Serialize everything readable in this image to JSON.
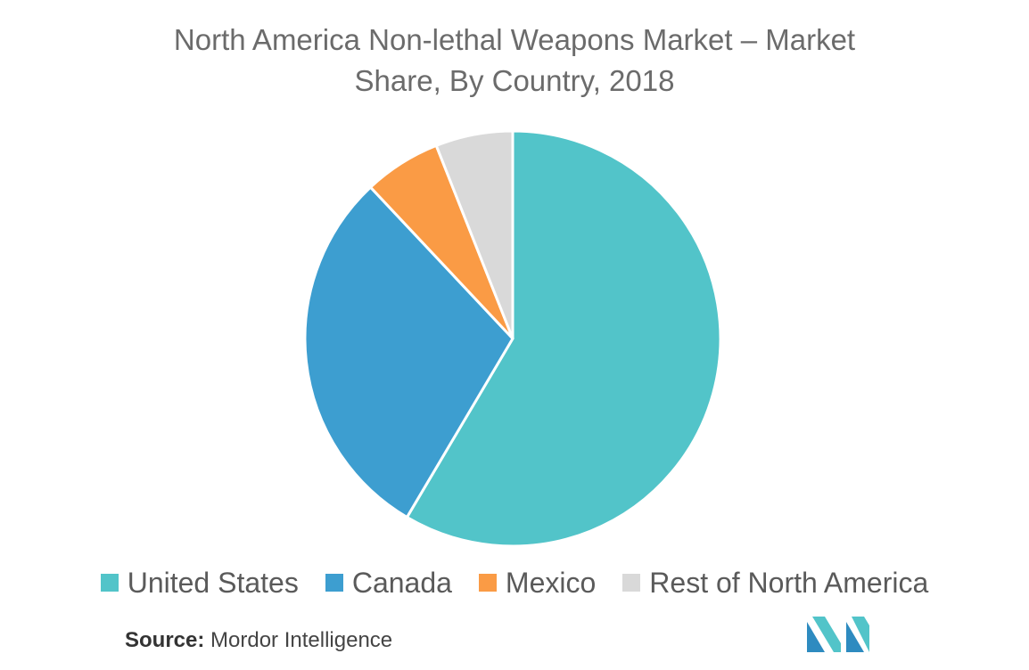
{
  "chart_data": {
    "type": "pie",
    "title_lines": [
      "North America Non-lethal Weapons Market – Market",
      "Share, By Country, 2018"
    ],
    "categories": [
      "United States",
      "Canada",
      "Mexico",
      "Rest of North America"
    ],
    "values": [
      58.5,
      29.5,
      6,
      6
    ],
    "colors": [
      "#52c4c9",
      "#3d9ed0",
      "#fa9b45",
      "#d9d9d9"
    ],
    "legend_position": "bottom"
  },
  "source": {
    "label": "Source:",
    "text": "Mordor Intelligence"
  },
  "logo": {
    "icon": "mordor-intelligence-logo",
    "colors": [
      "#2e8bc0",
      "#52c4c9"
    ]
  }
}
